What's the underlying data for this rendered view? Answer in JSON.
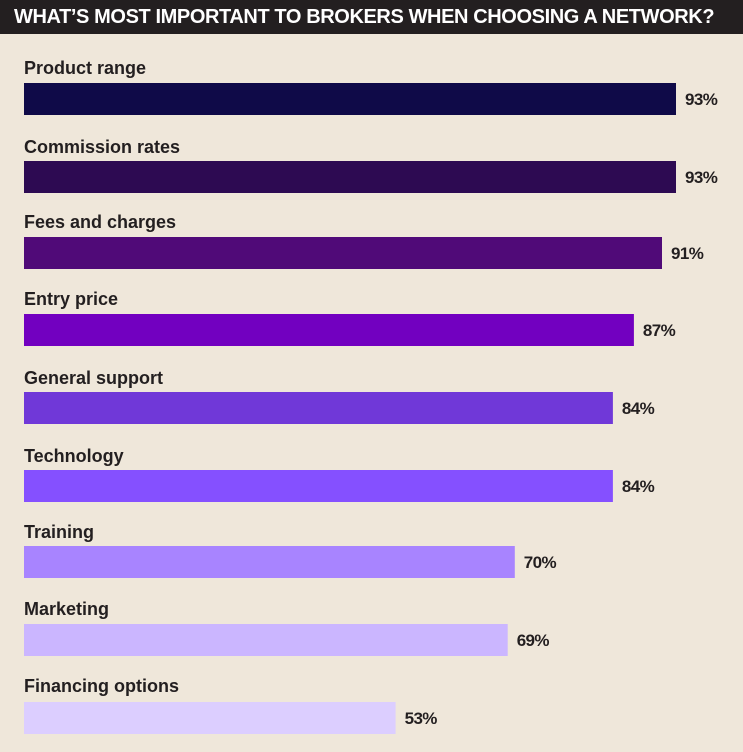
{
  "header": {
    "title": "WHAT’S MOST IMPORTANT TO BROKERS WHEN CHOOSING A NETWORK?"
  },
  "chart_data": {
    "type": "bar",
    "orientation": "horizontal",
    "title": "WHAT’S MOST IMPORTANT TO BROKERS WHEN CHOOSING A NETWORK?",
    "categories": [
      "Product range",
      "Commission rates",
      "Fees and charges",
      "Entry price",
      "General support",
      "Technology",
      "Training",
      "Marketing",
      "Financing options"
    ],
    "values": [
      93,
      93,
      91,
      87,
      84,
      84,
      70,
      69,
      53
    ],
    "value_labels": [
      "93%",
      "93%",
      "91%",
      "87%",
      "84%",
      "84%",
      "70%",
      "69%",
      "53%"
    ],
    "unit": "%",
    "xlim": [
      0,
      100
    ],
    "grid": false,
    "legend": "none",
    "bar_colors": [
      "#0f0a48",
      "#2d0a52",
      "#500a78",
      "#7200c0",
      "#7038d8",
      "#8550ff",
      "#a884ff",
      "#cbb6ff",
      "#dcceff"
    ],
    "text_color": "#231f20",
    "background_color": "#efe7da"
  }
}
